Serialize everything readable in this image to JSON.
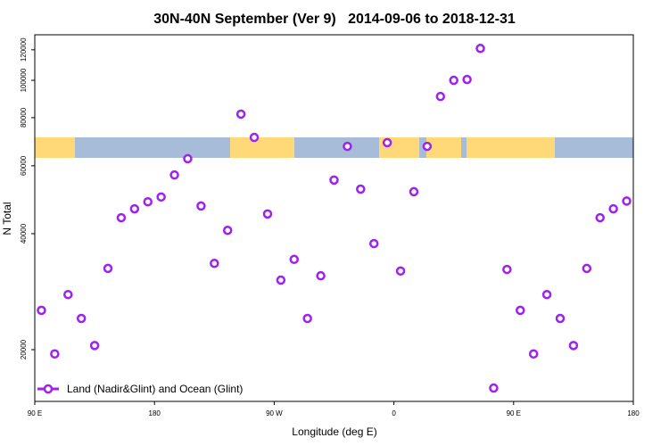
{
  "chart_data": {
    "type": "scatter",
    "title": "30N-40N September (Ver 9)   2014-09-06 to 2018-12-31",
    "xlabel": "Longitude (deg E)",
    "ylabel": "N Total",
    "xlim": [
      90,
      540
    ],
    "ylim": [
      13000,
      130000
    ],
    "yscale": "log",
    "x_ticks": [
      {
        "v": 90,
        "label": "90 E"
      },
      {
        "v": 180,
        "label": "180"
      },
      {
        "v": 270,
        "label": "90 W"
      },
      {
        "v": 360,
        "label": "0"
      },
      {
        "v": 450,
        "label": "90 E"
      },
      {
        "v": 540,
        "label": "180"
      }
    ],
    "y_ticks": [
      {
        "v": 20000,
        "label": "20000"
      },
      {
        "v": 40000,
        "label": "40000"
      },
      {
        "v": 60000,
        "label": "60000"
      },
      {
        "v": 80000,
        "label": "80000"
      },
      {
        "v": 100000,
        "label": "100000"
      },
      {
        "v": 120000,
        "label": "120000"
      }
    ],
    "legend": {
      "label": "Land (Nadir&Glint) and Ocean (Glint)",
      "placement": "bottom-left"
    },
    "series": [
      {
        "name": "Land (Nadir&Glint) and Ocean (Glint)",
        "color": "#a020f0",
        "x": [
          95,
          105,
          115,
          125,
          135,
          145,
          155,
          165,
          175,
          185,
          195,
          205,
          215,
          225,
          235,
          245,
          255,
          265,
          275,
          285,
          295,
          305,
          315,
          325,
          335,
          345,
          355,
          365,
          375,
          385,
          395,
          405,
          415,
          425,
          435,
          445,
          455,
          465,
          475,
          485,
          495,
          505,
          515,
          525,
          535
        ],
        "y": [
          25300,
          19500,
          27800,
          24100,
          20500,
          32500,
          44000,
          46400,
          48400,
          49800,
          56800,
          62600,
          47200,
          33500,
          40800,
          81700,
          71100,
          45000,
          30300,
          34300,
          24100,
          31100,
          55100,
          67400,
          52200,
          37700,
          68900,
          32000,
          51400,
          67400,
          90800,
          100000,
          100500,
          121000,
          15900,
          32300,
          25300,
          19500,
          27800,
          24100,
          20500,
          32500,
          44000,
          46400,
          48600
        ]
      }
    ],
    "map_band": {
      "ocean_color": "#a7bcd9",
      "land_color": "#ffd978"
    }
  }
}
